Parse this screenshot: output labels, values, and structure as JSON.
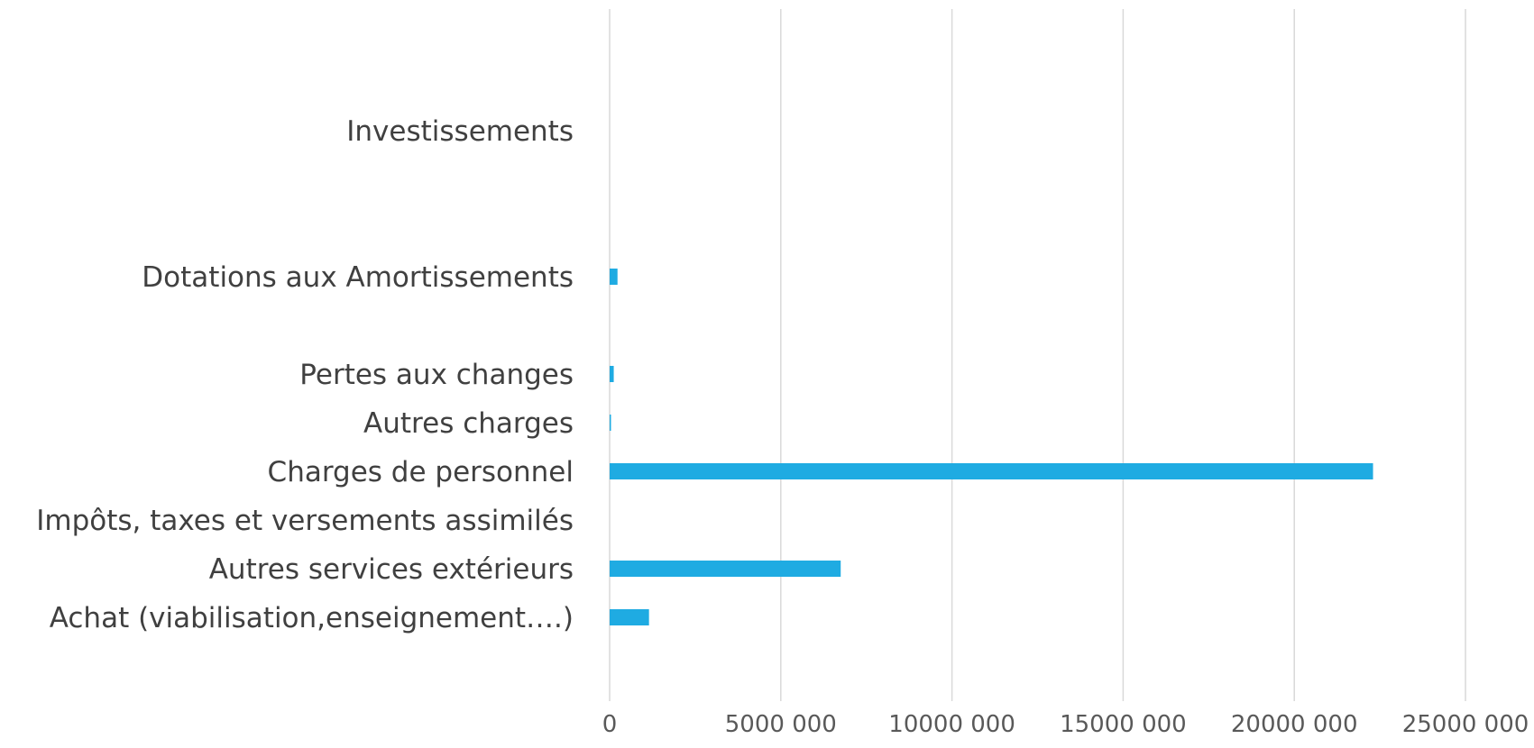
{
  "chart_data": {
    "type": "bar",
    "orientation": "horizontal",
    "title": "",
    "xlabel": "",
    "ylabel": "",
    "categories": [
      "Achat (viabilisation,enseignement….)",
      "Autres  services extérieurs",
      "Impôts, taxes et versements assimilés",
      "Charges de personnel",
      "Autres charges",
      "Pertes aux changes",
      "",
      "Dotations aux Amortissements",
      "",
      "",
      "Investissements",
      "",
      ""
    ],
    "values": [
      1150000,
      6750000,
      0,
      22300000,
      30000,
      120000,
      null,
      230000,
      null,
      null,
      0,
      null,
      null
    ],
    "xlim": [
      0,
      25000000
    ],
    "ticks": [
      0,
      5000000,
      10000000,
      15000000,
      20000000,
      25000000
    ],
    "tick_labels": [
      "0",
      "5000 000",
      "10000 000",
      "15000 000",
      "20000 000",
      "25000 000"
    ],
    "bar_color": "#1fabe2",
    "grid": true,
    "legend": "none"
  }
}
